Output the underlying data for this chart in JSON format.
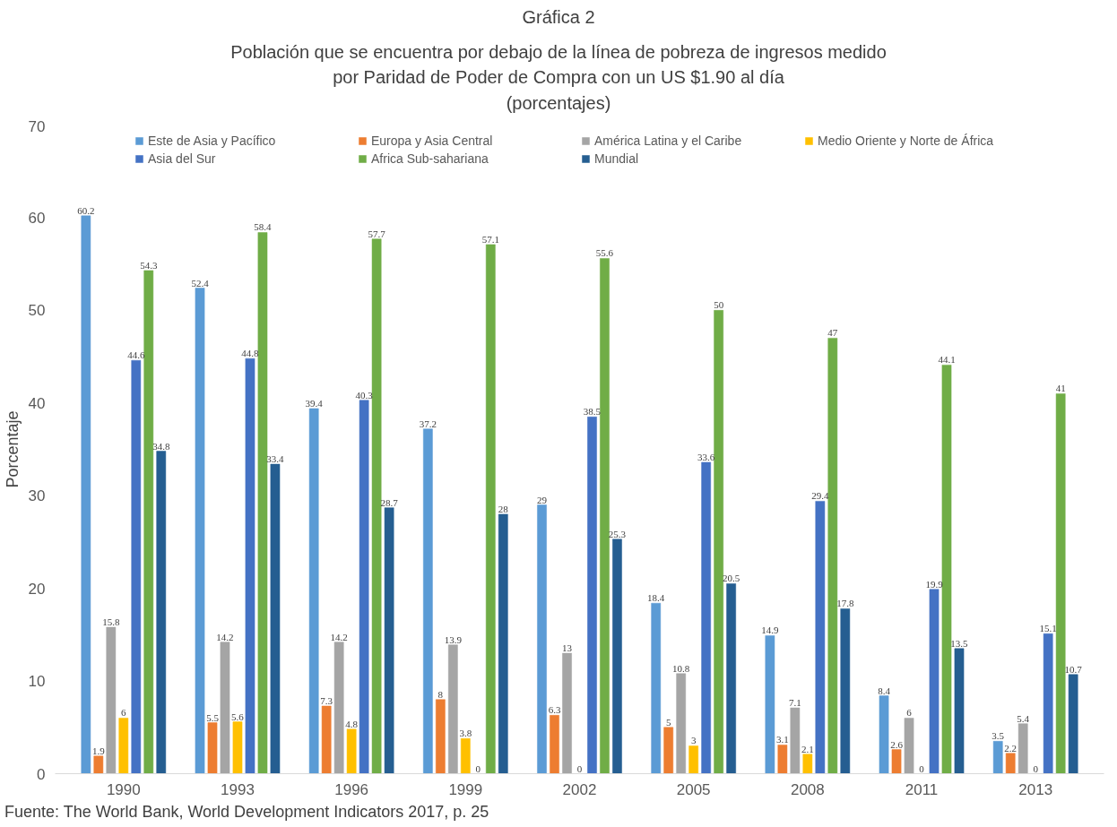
{
  "chart_data": {
    "type": "bar",
    "title": "Gráfica 2",
    "subtitle": "Población que se encuentra por debajo de la línea de pobreza de ingresos medido\npor Paridad de Poder de Compra con un US $1.90 al día\n(porcentajes)",
    "ylabel": "Porcentaje",
    "categories": [
      "1990",
      "1993",
      "1996",
      "1999",
      "2002",
      "2005",
      "2008",
      "2011",
      "2013"
    ],
    "series": [
      {
        "name": "Este de Asia y Pacífico",
        "color": "#5b9bd5",
        "values": [
          60.2,
          52.4,
          39.4,
          37.2,
          29,
          18.4,
          14.9,
          8.4,
          3.5
        ]
      },
      {
        "name": "Europa y Asia Central",
        "color": "#ed7d31",
        "values": [
          1.9,
          5.5,
          7.3,
          8,
          6.3,
          5,
          3.1,
          2.6,
          2.2
        ]
      },
      {
        "name": "América Latina y el Caribe",
        "color": "#a5a5a5",
        "values": [
          15.8,
          14.2,
          14.2,
          13.9,
          13,
          10.8,
          7.1,
          6,
          5.4
        ]
      },
      {
        "name": "Medio Oriente y Norte de África",
        "color": "#ffc000",
        "values": [
          6,
          5.6,
          4.8,
          3.8,
          0,
          3,
          2.1,
          0,
          0
        ]
      },
      {
        "name": "Asia del Sur",
        "color": "#4472c4",
        "values": [
          44.6,
          44.8,
          40.3,
          0,
          38.5,
          33.6,
          29.4,
          19.9,
          15.1
        ]
      },
      {
        "name": "Africa Sub-sahariana",
        "color": "#70ad47",
        "values": [
          54.3,
          58.4,
          57.7,
          57.1,
          55.6,
          50,
          47,
          44.1,
          41
        ]
      },
      {
        "name": "Mundial",
        "color": "#255e91",
        "values": [
          34.8,
          33.4,
          28.7,
          28,
          25.3,
          20.5,
          17.8,
          13.5,
          10.7
        ]
      }
    ],
    "ylim": [
      0,
      70
    ],
    "yticks": [
      0,
      10,
      20,
      30,
      40,
      50,
      60,
      70
    ],
    "grid": false,
    "legend": "top",
    "data_labels": true,
    "annotations": [
      "Fuente: The World Bank, World Development Indicators 2017, p. 25"
    ]
  }
}
